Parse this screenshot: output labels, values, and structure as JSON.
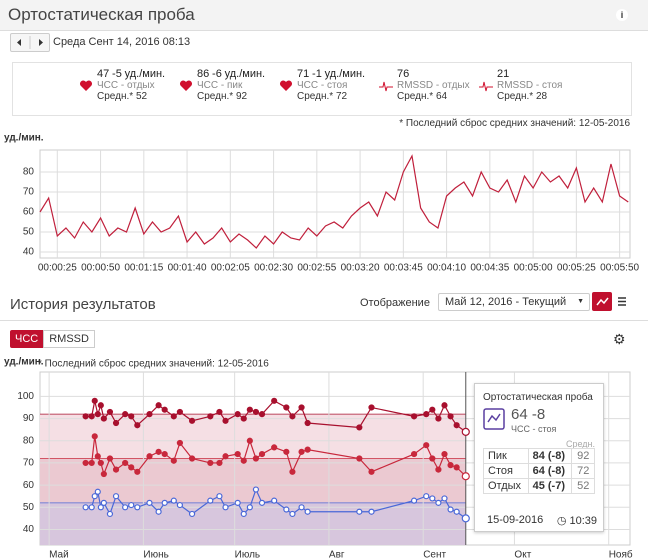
{
  "header": {
    "title": "Ортостатическая проба"
  },
  "nav": {
    "date": "Среда Сент 14, 2016 08:13"
  },
  "stats": {
    "unit": "уд./мин.",
    "avg_label": "Средн.*",
    "items": [
      {
        "value": 47,
        "delta": "-5",
        "label": "ЧСС - отдых",
        "avg": 52,
        "icon": "heart"
      },
      {
        "value": 86,
        "delta": "-6",
        "label": "ЧСС - пик",
        "avg": 92,
        "icon": "heart"
      },
      {
        "value": 71,
        "delta": "-1",
        "label": "ЧСС - стоя",
        "avg": 72,
        "icon": "heart"
      },
      {
        "value": 76,
        "label": "RMSSD - отдых",
        "avg": 64,
        "icon": "rr"
      },
      {
        "value": 21,
        "label": "RMSSD - стоя",
        "avg": 28,
        "icon": "rr"
      }
    ]
  },
  "reset_note": "* Последний сброс средних значений: 12-05-2016",
  "history": {
    "title": "История результатов",
    "display_label": "Отображение",
    "range": "Май 12, 2016 - Текущий",
    "tabs": [
      "ЧСС",
      "RMSSD"
    ],
    "reset_note": "* Последний сброс средних значений: 12-05-2016"
  },
  "tooltip": {
    "title": "Ортостатическая проба",
    "delta": "-8",
    "label": "ЧСС - стоя",
    "avg_header": "Средн.",
    "deltas": [
      "(-8)",
      "(-8)",
      "(-7)"
    ],
    "date": "15-09-2016",
    "time": "10:39"
  },
  "chart_data": [
    {
      "type": "line",
      "y_label": "уд./мин.",
      "color": "#c0203c",
      "grid": true,
      "x": [
        15,
        20,
        25,
        30,
        35,
        40,
        45,
        50,
        55,
        60,
        65,
        70,
        75,
        80,
        85,
        90,
        95,
        100,
        105,
        110,
        115,
        120,
        125,
        130,
        135,
        140,
        145,
        150,
        155,
        160,
        165,
        170,
        175,
        180,
        185,
        190,
        195,
        200,
        205,
        210,
        215,
        220,
        225,
        230,
        235,
        240,
        245,
        250,
        255,
        260,
        265,
        270,
        275,
        280,
        285,
        290,
        295,
        300,
        305,
        310,
        315,
        320,
        325,
        330,
        335,
        340,
        345,
        350,
        355
      ],
      "values": [
        60,
        67,
        48,
        52,
        47,
        55,
        50,
        57,
        48,
        52,
        50,
        62,
        49,
        55,
        50,
        52,
        58,
        45,
        50,
        44,
        47,
        52,
        45,
        49,
        46,
        42,
        48,
        44,
        50,
        47,
        46,
        52,
        48,
        53,
        55,
        52,
        58,
        62,
        65,
        58,
        70,
        66,
        80,
        88,
        62,
        55,
        52,
        68,
        72,
        75,
        68,
        80,
        72,
        70,
        76,
        65,
        78,
        72,
        80,
        75,
        78,
        72,
        82,
        65,
        72,
        65,
        84,
        68,
        65
      ],
      "xlim": [
        15,
        356
      ],
      "ylim": [
        37,
        91
      ],
      "xticks": [
        {
          "value": 25,
          "label": "00:00:25"
        },
        {
          "value": 50,
          "label": "00:00:50"
        },
        {
          "value": 75,
          "label": "00:01:15"
        },
        {
          "value": 100,
          "label": "00:01:40"
        },
        {
          "value": 125,
          "label": "00:02:05"
        },
        {
          "value": 150,
          "label": "00:02:30"
        },
        {
          "value": 175,
          "label": "00:02:55"
        },
        {
          "value": 200,
          "label": "00:03:20"
        },
        {
          "value": 225,
          "label": "00:03:45"
        },
        {
          "value": 250,
          "label": "00:04:10"
        },
        {
          "value": 275,
          "label": "00:04:35"
        },
        {
          "value": 300,
          "label": "00:05:00"
        },
        {
          "value": 325,
          "label": "00:05:25"
        },
        {
          "value": 350,
          "label": "00:05:50"
        }
      ],
      "yticks": [
        40,
        50,
        60,
        70,
        80
      ]
    },
    {
      "type": "line",
      "y_label": "уд./мин.",
      "grid": true,
      "markers": true,
      "x": [
        12,
        14,
        15,
        16,
        17,
        18,
        20,
        22,
        25,
        27,
        29,
        33,
        36,
        38,
        41,
        43,
        47,
        53,
        56,
        58,
        62,
        64,
        66,
        68,
        70,
        74,
        78,
        80,
        83,
        85,
        102,
        106,
        120,
        124,
        126,
        128,
        130,
        132,
        134,
        137
      ],
      "series": [
        {
          "name": "Пик",
          "color": "#a8102e",
          "band": "#f5dfe4",
          "average": 92,
          "values": [
            91,
            91,
            98,
            92,
            96,
            90,
            93,
            88,
            92,
            91,
            87,
            92,
            96,
            94,
            91,
            93,
            89,
            91,
            93,
            89,
            92,
            90,
            94,
            93,
            92,
            98,
            95,
            91,
            95,
            88,
            86,
            95,
            91,
            92,
            94,
            90,
            96,
            91,
            87,
            84
          ]
        },
        {
          "name": "Стоя",
          "color": "#c8283c",
          "band": "#ebc9d1",
          "average": 72,
          "values": [
            70,
            70,
            82,
            73,
            70,
            65,
            72,
            67,
            70,
            68,
            66,
            73,
            75,
            74,
            71,
            79,
            72,
            70,
            70,
            73,
            74,
            71,
            80,
            72,
            74,
            77,
            75,
            66,
            75,
            76,
            72,
            66,
            74,
            78,
            72,
            67,
            74,
            69,
            68,
            64
          ]
        },
        {
          "name": "Отдых",
          "color": "#4a68d8",
          "band": "#d7c6dd",
          "average": 52,
          "values": [
            50,
            50,
            55,
            57,
            50,
            52,
            47,
            55,
            50,
            51,
            50,
            52,
            48,
            52,
            53,
            51,
            47,
            53,
            55,
            50,
            52,
            47,
            50,
            58,
            52,
            53,
            49,
            47,
            50,
            48,
            48,
            48,
            53,
            55,
            54,
            52,
            54,
            49,
            48,
            45
          ]
        }
      ],
      "xlim": [
        -3,
        191
      ],
      "ylim": [
        33,
        111
      ],
      "xticks": [
        {
          "value": 0,
          "label": "Май"
        },
        {
          "value": 31,
          "label": "Июнь"
        },
        {
          "value": 61,
          "label": "Июль"
        },
        {
          "value": 92,
          "label": "Авг"
        },
        {
          "value": 123,
          "label": "Сент"
        },
        {
          "value": 153,
          "label": "Окт"
        },
        {
          "value": 184,
          "label": "Нояб"
        }
      ],
      "yticks": [
        40,
        50,
        60,
        70,
        80,
        90,
        100
      ]
    }
  ]
}
